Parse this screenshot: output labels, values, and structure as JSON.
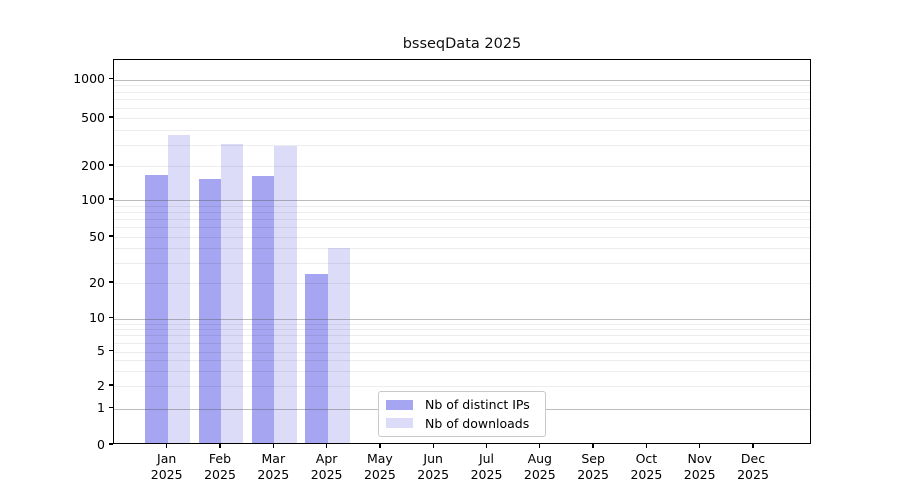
{
  "chart_data": {
    "type": "bar",
    "title": "bsseqData 2025",
    "categories": [
      "Jan 2025",
      "Feb 2025",
      "Mar 2025",
      "Apr 2025",
      "May 2025",
      "Jun 2025",
      "Jul 2025",
      "Aug 2025",
      "Sep 2025",
      "Oct 2025",
      "Nov 2025",
      "Dec 2025"
    ],
    "series": [
      {
        "name": "Nb of distinct IPs",
        "color": "#a5a5f2",
        "values": [
          160,
          148,
          156,
          23,
          null,
          null,
          null,
          null,
          null,
          null,
          null,
          null
        ]
      },
      {
        "name": "Nb of downloads",
        "color": "#dcdcf9",
        "values": [
          350,
          293,
          280,
          39,
          null,
          null,
          null,
          null,
          null,
          null,
          null,
          null
        ]
      }
    ],
    "y_ticks": [
      0,
      1,
      2,
      5,
      10,
      20,
      50,
      100,
      200,
      500,
      1000
    ],
    "y_scale": "symlog",
    "ylim": [
      0,
      1450
    ],
    "xlabel": "",
    "ylabel": "",
    "grid": "horizontal: major lines at powers of 10, faint log minors",
    "legend_position": "inside, lower center-left",
    "legend_entries": [
      "Nb of distinct IPs",
      "Nb of downloads"
    ],
    "colors": {
      "distinct_ips": "#a5a5f2",
      "downloads": "#dcdcf9",
      "axis": "#000000",
      "background": "#ffffff"
    }
  }
}
